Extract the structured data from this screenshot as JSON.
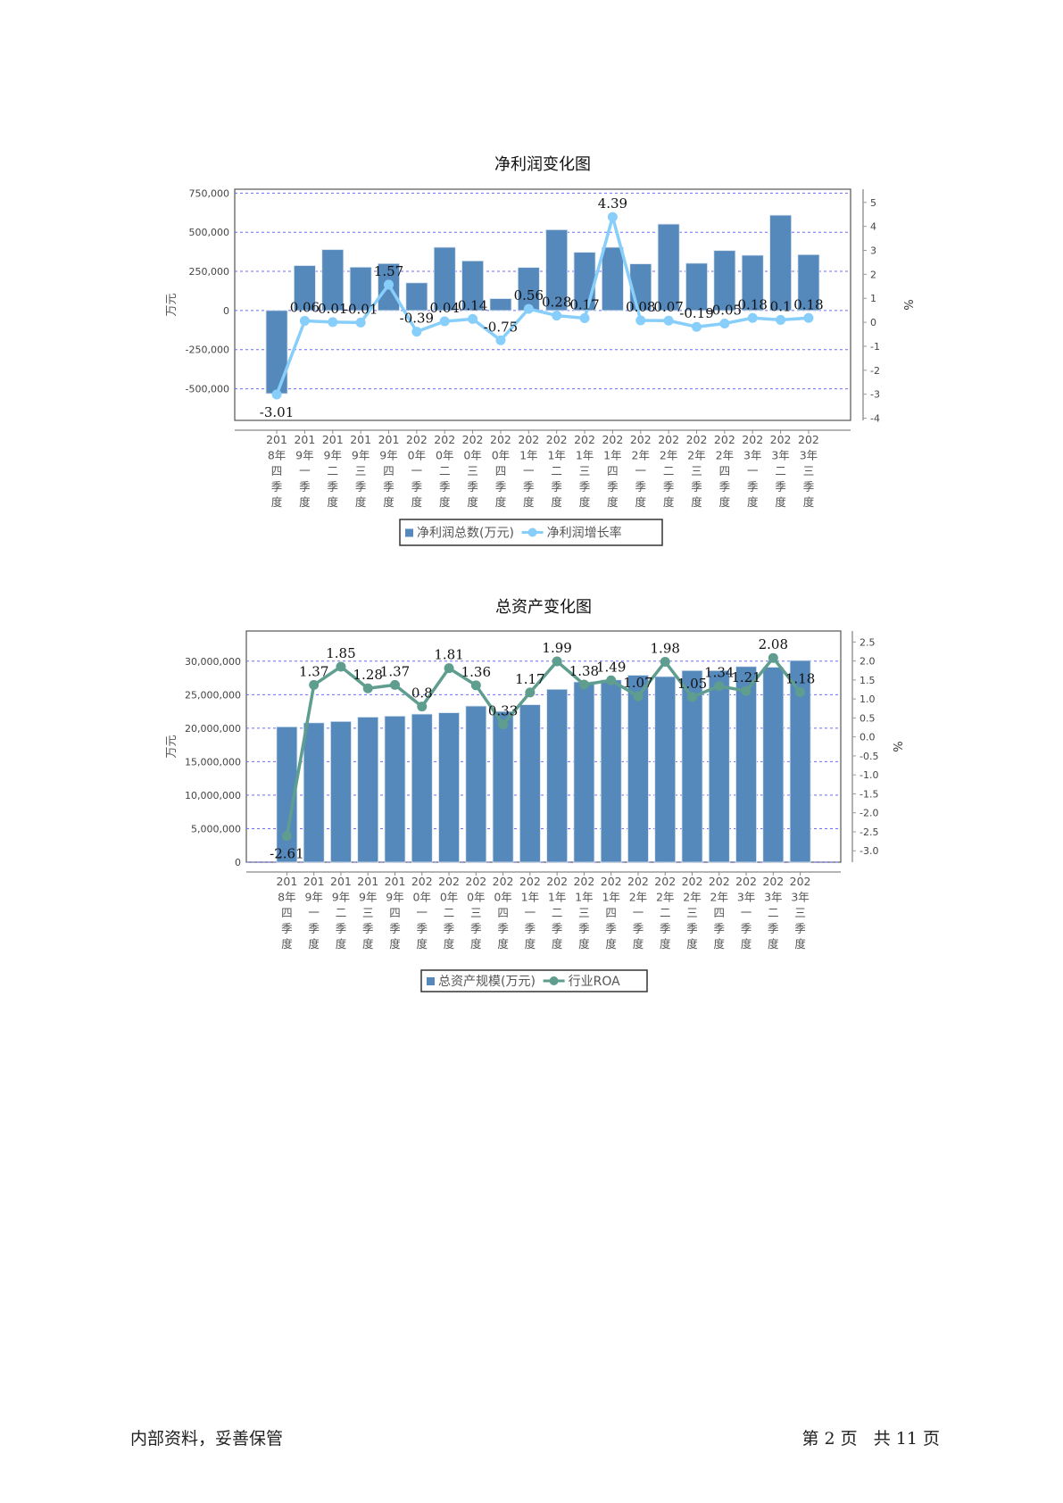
{
  "charts_meta": {
    "bar_color": "#5588BB",
    "grid_color": "#6A6AFF"
  },
  "chart_data": [
    {
      "type": "bar+line",
      "title": "净利润变化图",
      "ylabel": "万元",
      "y2label": "%",
      "categories": [
        "2018年四季度",
        "2019年一季度",
        "2019年二季度",
        "2019年三季度",
        "2019年四季度",
        "2020年一季度",
        "2020年二季度",
        "2020年三季度",
        "2020年四季度",
        "2021年一季度",
        "2021年二季度",
        "2021年三季度",
        "2021年四季度",
        "2022年一季度",
        "2022年二季度",
        "2022年三季度",
        "2022年四季度",
        "2023年一季度",
        "2023年二季度",
        "2023年三季度"
      ],
      "series": [
        {
          "name": "净利润总数(万元)",
          "type": "bar",
          "axis": "left",
          "color": "#5588BB",
          "values": [
            -531000,
            287000,
            389000,
            277000,
            300000,
            177000,
            404000,
            317000,
            76000,
            275000,
            516000,
            372000,
            404000,
            298000,
            552000,
            302000,
            383000,
            353000,
            609000,
            357000
          ]
        },
        {
          "name": "净利润增长率",
          "type": "line",
          "axis": "right",
          "color": "#87CEFA",
          "values": [
            -3.01,
            0.06,
            0.01,
            -0.01,
            1.57,
            -0.39,
            0.04,
            0.14,
            -0.75,
            0.56,
            0.28,
            0.17,
            4.39,
            0.08,
            0.07,
            -0.19,
            -0.05,
            0.18,
            0.1,
            0.18
          ],
          "labels": [
            "-3.01",
            "0.06",
            "0.01",
            "-0.01",
            "1.57",
            "-0.39",
            "0.04",
            "0.14",
            "-0.75",
            "0.56",
            "0.28",
            "0.17",
            "4.39",
            "0.08",
            "0.07",
            "-0.19",
            "-0.05",
            "0.18",
            "0.1",
            "0.18"
          ]
        }
      ],
      "ylim": [
        -702000,
        775000
      ],
      "yticks": [
        -500000,
        -250000,
        0,
        250000,
        500000,
        750000
      ],
      "ytick_labels": [
        "-500,000",
        "-250,000",
        "0",
        "250,000",
        "500,000",
        "750,000"
      ],
      "y2lim": [
        -4.09,
        5.55
      ],
      "y2ticks": [
        -4,
        -3,
        -2,
        -1,
        0,
        1,
        2,
        3,
        4,
        5
      ],
      "y2tick_labels": [
        "-4",
        "-3",
        "-2",
        "-1",
        "0",
        "1",
        "2",
        "3",
        "4",
        "5"
      ],
      "grid": true,
      "legend": "bottom"
    },
    {
      "type": "bar+line",
      "title": "总资产变化图",
      "ylabel": "万元",
      "y2label": "%",
      "categories": [
        "2018年四季度",
        "2019年一季度",
        "2019年二季度",
        "2019年三季度",
        "2019年四季度",
        "2020年一季度",
        "2020年二季度",
        "2020年三季度",
        "2020年四季度",
        "2021年一季度",
        "2021年二季度",
        "2021年三季度",
        "2021年四季度",
        "2022年一季度",
        "2022年二季度",
        "2022年三季度",
        "2022年四季度",
        "2023年一季度",
        "2023年二季度",
        "2023年三季度"
      ],
      "series": [
        {
          "name": "总资产规模(万元)",
          "type": "bar",
          "axis": "left",
          "color": "#5588BB",
          "values": [
            20200000,
            20800000,
            21000000,
            21650000,
            21800000,
            22100000,
            22300000,
            23300000,
            22500000,
            23500000,
            25800000,
            26900000,
            27200000,
            27900000,
            27700000,
            28600000,
            28600000,
            29200000,
            29100000,
            30100000
          ]
        },
        {
          "name": "行业ROA",
          "type": "line",
          "axis": "right",
          "color": "#5F9E8F",
          "values": [
            -2.61,
            1.37,
            1.85,
            1.28,
            1.37,
            0.8,
            1.81,
            1.36,
            0.33,
            1.17,
            1.99,
            1.38,
            1.49,
            1.07,
            1.98,
            1.05,
            1.34,
            1.21,
            2.08,
            1.18
          ],
          "labels": [
            "-2.61",
            "1.37",
            "1.85",
            "1.28",
            "1.37",
            "0.8",
            "1.81",
            "1.36",
            "0.33",
            "1.17",
            "1.99",
            "1.38",
            "1.49",
            "1.07",
            "1.98",
            "1.05",
            "1.34",
            "1.21",
            "2.08",
            "1.18"
          ]
        }
      ],
      "ylim": [
        0,
        34500000
      ],
      "yticks": [
        0,
        5000000,
        10000000,
        15000000,
        20000000,
        25000000,
        30000000
      ],
      "ytick_labels": [
        "0",
        "5,000,000",
        "10,000,000",
        "15,000,000",
        "20,000,000",
        "25,000,000",
        "30,000,000"
      ],
      "y2lim": [
        -3.3,
        2.79
      ],
      "y2ticks": [
        -3,
        -2.5,
        -2,
        -1.5,
        -1,
        -0.5,
        0,
        0.5,
        1,
        1.5,
        2,
        2.5
      ],
      "y2tick_labels": [
        "-3.0",
        "-2.5",
        "-2.0",
        "-1.5",
        "-1.0",
        "-0.5",
        "0.0",
        "0.5",
        "1.0",
        "1.5",
        "2.0",
        "2.5"
      ],
      "grid": true,
      "legend": "bottom"
    }
  ],
  "footer": {
    "left": "内部资料，妥善保管",
    "right": "第 2 页   共 11 页"
  }
}
